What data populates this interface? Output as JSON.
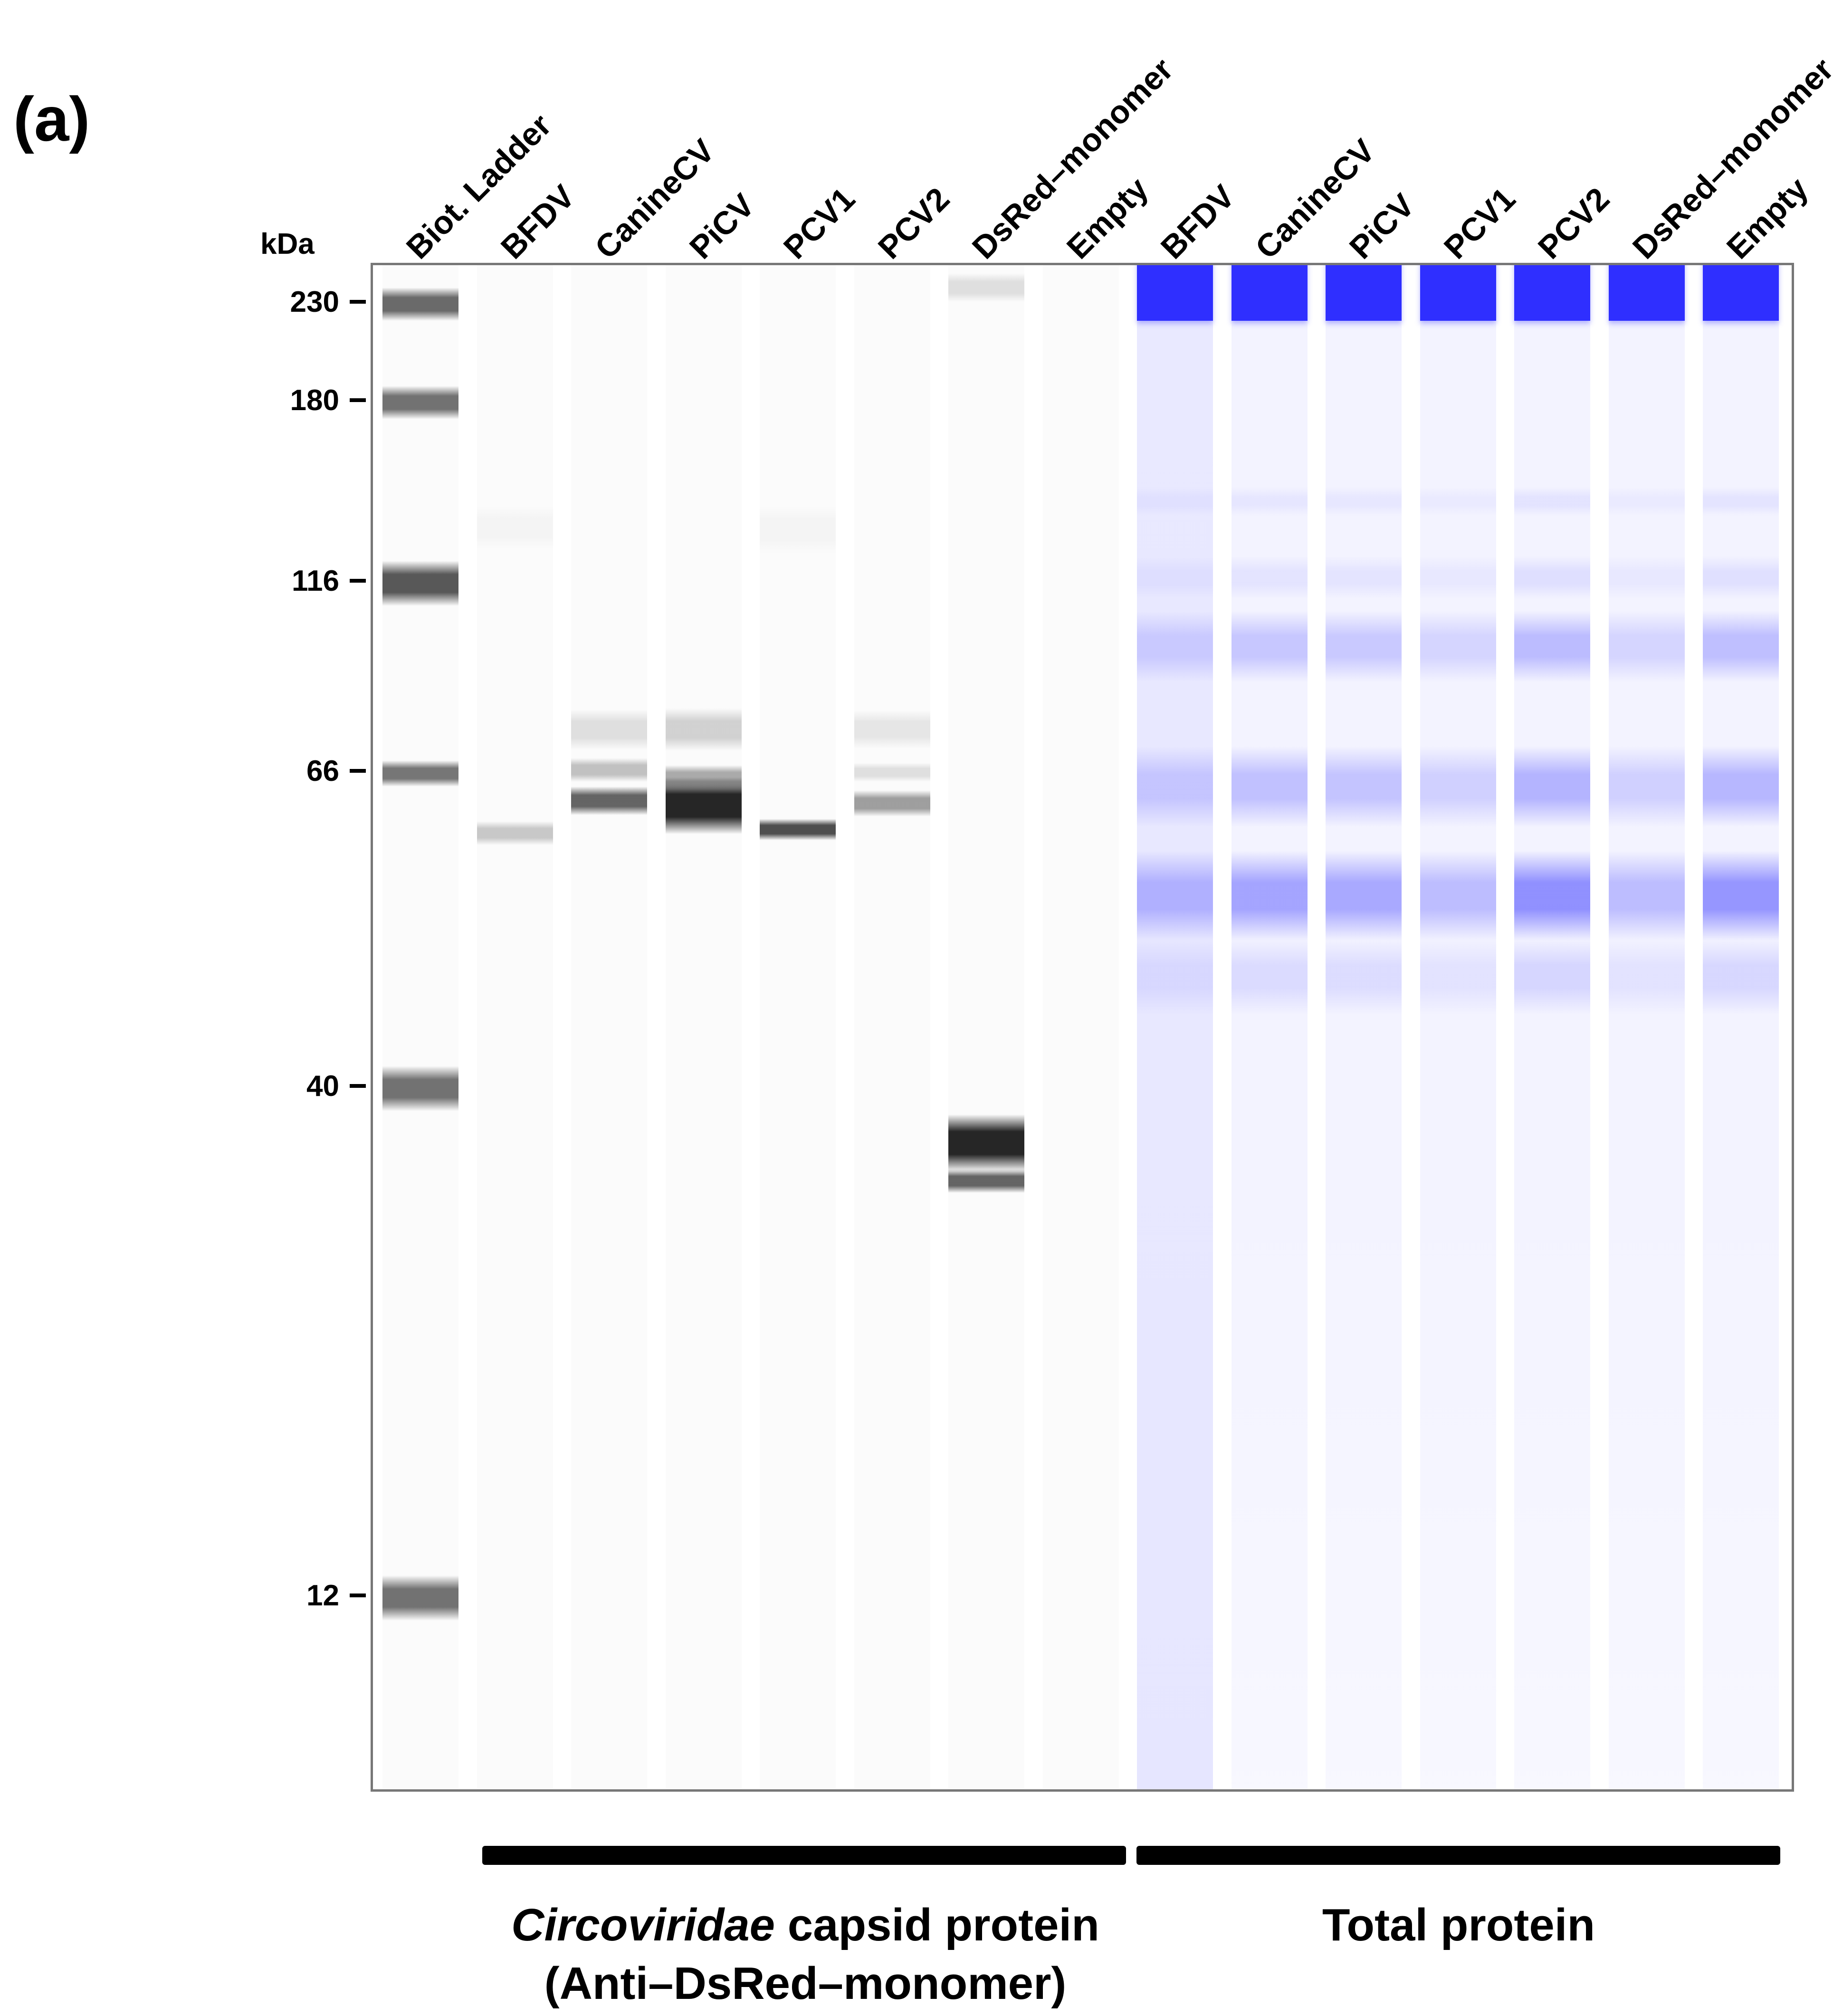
{
  "panel_label": "(a)",
  "axis_unit": "kDa",
  "markers": [
    {
      "label": "230",
      "kda": 230
    },
    {
      "label": "180",
      "kda": 180
    },
    {
      "label": "116",
      "kda": 116
    },
    {
      "label": "66",
      "kda": 66
    },
    {
      "label": "40",
      "kda": 40
    },
    {
      "label": "12",
      "kda": 12
    }
  ],
  "lanes": [
    {
      "label": "Biot. Ladder",
      "type": "ladder"
    },
    {
      "label": "BFDV",
      "type": "western"
    },
    {
      "label": "CanineCV",
      "type": "western"
    },
    {
      "label": "PiCV",
      "type": "western"
    },
    {
      "label": "PCV1",
      "type": "western"
    },
    {
      "label": "PCV2",
      "type": "western"
    },
    {
      "label": "DsRed–monomer",
      "type": "western"
    },
    {
      "label": "Empty",
      "type": "western"
    },
    {
      "label": "BFDV",
      "type": "total"
    },
    {
      "label": "CanineCV",
      "type": "total"
    },
    {
      "label": "PiCV",
      "type": "total"
    },
    {
      "label": "PCV1",
      "type": "total"
    },
    {
      "label": "PCV2",
      "type": "total"
    },
    {
      "label": "DsRed–monomer",
      "type": "total"
    },
    {
      "label": "Empty",
      "type": "total"
    }
  ],
  "groups": {
    "capsid": {
      "caption_italic": "Circoviridae",
      "caption_rest": " capsid protein",
      "caption_line2": "(Anti–DsRed–monomer)"
    },
    "total": {
      "caption": "Total protein"
    }
  },
  "colors": {
    "western_band": "#1a1a1a",
    "total_stain": "#2f2fff",
    "ladder_band": "#555555",
    "gel_border": "#777777"
  }
}
